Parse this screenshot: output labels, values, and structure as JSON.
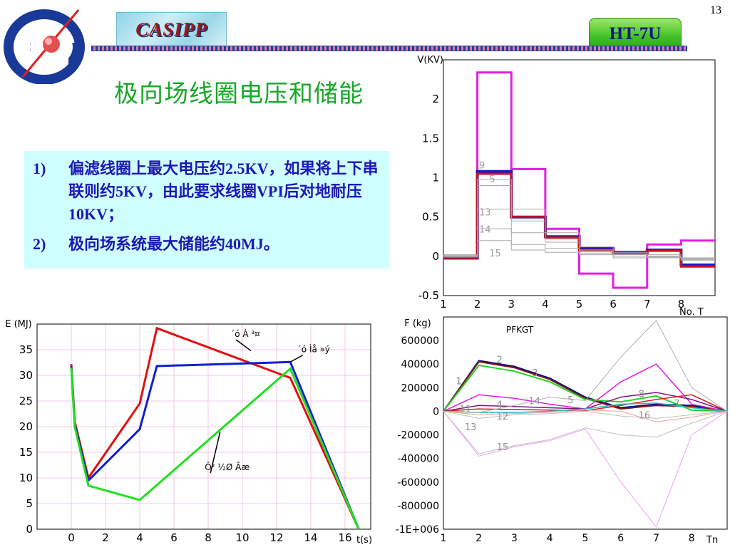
{
  "page_number": "13",
  "logo": {
    "name": "casipp-emblem"
  },
  "header": {
    "casipp_label": "CASIPP",
    "badge_label": "HT-7U"
  },
  "title": "极向场线圈电压和储能",
  "notes": [
    {
      "num": "1)",
      "text": "偏滤线圈上最大电压约2.5KV，如果将上下串联则约5KV，由此要求线圈VPI后对地耐压10KV；"
    },
    {
      "num": "2)",
      "text": "极向场系统最大储能约40MJ。"
    }
  ],
  "chart_data": [
    {
      "type": "line",
      "step": true,
      "ylabel": "V(KV)",
      "xlabel": "No. T",
      "xlim": [
        1,
        9
      ],
      "ylim": [
        -0.5,
        2.5
      ],
      "x_ticks": [
        1,
        2,
        3,
        4,
        5,
        6,
        7,
        8
      ],
      "y_ticks": [
        -0.5,
        0,
        0.5,
        1,
        1.5,
        2
      ],
      "y_tick_labels": [
        "-0.5",
        "0",
        "0.5",
        "1",
        "1.5",
        "2"
      ],
      "grid": false,
      "series": [
        {
          "color": "#e21ee2",
          "width": 3,
          "values": [
            -0.03,
            2.34,
            1.11,
            0.35,
            -0.22,
            -0.4,
            0.15,
            0.2
          ]
        },
        {
          "color": "#1a1ac8",
          "width": 4,
          "values": [
            -0.02,
            1.08,
            0.5,
            0.25,
            0.1,
            0.05,
            0.08,
            -0.11
          ]
        },
        {
          "color": "#c81414",
          "width": 3,
          "values": [
            -0.02,
            1.05,
            0.5,
            0.24,
            0.08,
            0.03,
            0.07,
            -0.13
          ]
        },
        {
          "color": "#a8a8a8",
          "width": 1,
          "values": [
            0.02,
            0.98,
            0.6,
            0.3,
            0.12,
            0.05,
            0.0,
            -0.02
          ]
        },
        {
          "color": "#a8a8a8",
          "width": 1,
          "values": [
            0.01,
            0.9,
            0.45,
            0.22,
            0.08,
            0.02,
            0.0,
            -0.03
          ]
        },
        {
          "color": "#a8a8a8",
          "width": 1,
          "values": [
            0.0,
            0.6,
            0.3,
            0.18,
            0.06,
            0.03,
            0.02,
            -0.05
          ]
        },
        {
          "color": "#a8a8a8",
          "width": 1,
          "values": [
            0.0,
            0.35,
            0.15,
            0.1,
            0.04,
            0.0,
            -0.02,
            -0.04
          ]
        },
        {
          "color": "#a8a8a8",
          "width": 1,
          "values": [
            -0.01,
            0.2,
            0.08,
            0.05,
            0.02,
            -0.02,
            -0.01,
            -0.03
          ]
        }
      ],
      "annotations": [
        {
          "text": "9",
          "x": 2.05,
          "y": 1.12
        },
        {
          "text": "5",
          "x": 2.35,
          "y": 0.94
        },
        {
          "text": "13",
          "x": 2.05,
          "y": 0.52
        },
        {
          "text": "14",
          "x": 2.05,
          "y": 0.3
        },
        {
          "text": "15",
          "x": 2.35,
          "y": 0.0
        }
      ]
    },
    {
      "type": "line",
      "ylabel": "E (MJ)",
      "xlabel": "t(s)",
      "xlim": [
        -2,
        17.5
      ],
      "ylim": [
        0,
        40
      ],
      "x_ticks": [
        0,
        2,
        4,
        6,
        8,
        10,
        12,
        14,
        16
      ],
      "y_ticks": [
        0,
        5,
        10,
        15,
        20,
        25,
        30,
        35
      ],
      "grid": true,
      "series": [
        {
          "color": "#e01010",
          "x": [
            0,
            0.2,
            1,
            4,
            5,
            12.8,
            16.8
          ],
          "y": [
            32.2,
            21,
            10,
            24.5,
            39.2,
            29.5,
            0
          ]
        },
        {
          "color": "#1020d0",
          "x": [
            0,
            0.2,
            1,
            4,
            5,
            12.8,
            16.8
          ],
          "y": [
            31.8,
            20.5,
            9.5,
            19.5,
            31.8,
            32.6,
            0
          ]
        },
        {
          "color": "#20e020",
          "x": [
            0,
            0.2,
            1,
            4,
            12.8,
            16.8
          ],
          "y": [
            31.5,
            20,
            8.5,
            5.7,
            31.3,
            0
          ]
        }
      ],
      "annotations": [
        {
          "text": "´ó À­ ³¤",
          "x": 9.3,
          "y": 37.5,
          "leader_to": [
            10.5,
            34.8
          ]
        },
        {
          "text": "´ó Ìå »ý",
          "x": 13.2,
          "y": 34.5,
          "leader_to": [
            12.8,
            32.6
          ]
        },
        {
          "text": "Ô² ½Ø Ãæ",
          "x": 7.8,
          "y": 11.5,
          "leader_to": [
            8.7,
            19.0
          ]
        }
      ]
    },
    {
      "type": "line",
      "ylabel": "F (kg)",
      "xlabel": "Tn",
      "legend_title": "PFKGT",
      "xlim": [
        1,
        9
      ],
      "ylim": [
        -1000000,
        800000
      ],
      "x_ticks": [
        1,
        2,
        3,
        4,
        5,
        6,
        7,
        8
      ],
      "y_ticks": [
        600000,
        400000,
        200000,
        0,
        -200000,
        -400000,
        -600000,
        -800000,
        -1000000
      ],
      "y_tick_labels": [
        "600000",
        "400000",
        "200000",
        "0",
        "-200000",
        "-400000",
        "-600000",
        "-800000",
        "-1E+006"
      ],
      "grid": false,
      "series": [
        {
          "color": "#0a0a8a",
          "width": 2,
          "values": [
            0,
            430000,
            380000,
            280000,
            120000,
            30000,
            60000,
            50000,
            0
          ]
        },
        {
          "color": "#7a1a1a",
          "width": 2,
          "values": [
            0,
            420000,
            370000,
            270000,
            110000,
            20000,
            50000,
            40000,
            0
          ]
        },
        {
          "color": "#25d025",
          "width": 2,
          "values": [
            0,
            390000,
            340000,
            250000,
            100000,
            80000,
            130000,
            10000,
            0
          ]
        },
        {
          "color": "#e21ee2",
          "width": 1.5,
          "values": [
            0,
            140000,
            110000,
            60000,
            20000,
            250000,
            400000,
            60000,
            0
          ]
        },
        {
          "color": "#7a1a7a",
          "width": 1.5,
          "values": [
            0,
            50000,
            40000,
            30000,
            20000,
            120000,
            160000,
            100000,
            0
          ]
        },
        {
          "color": "#d02020",
          "width": 1.5,
          "values": [
            0,
            20000,
            15000,
            10000,
            5000,
            50000,
            100000,
            140000,
            0
          ]
        },
        {
          "color": "#20c0c0",
          "width": 1.5,
          "values": [
            0,
            -10000,
            -10000,
            0,
            20000,
            60000,
            70000,
            30000,
            0
          ]
        },
        {
          "color": "#b0b0b0",
          "width": 1,
          "values": [
            0,
            -10000,
            50000,
            120000,
            90000,
            460000,
            770000,
            200000,
            0
          ]
        },
        {
          "color": "#c0c0c0",
          "width": 1,
          "values": [
            0,
            -60000,
            -30000,
            -20000,
            0,
            -40000,
            -60000,
            -30000,
            0
          ]
        },
        {
          "color": "#f0a0a0",
          "width": 1,
          "values": [
            0,
            -30000,
            -20000,
            -10000,
            10000,
            0,
            -90000,
            -50000,
            0
          ]
        },
        {
          "color": "#f0a0f0",
          "width": 1,
          "values": [
            0,
            -380000,
            -300000,
            -250000,
            -150000,
            -600000,
            -980000,
            -200000,
            0
          ]
        },
        {
          "color": "#c0c0c0",
          "width": 1,
          "values": [
            0,
            -360000,
            -290000,
            -240000,
            -140000,
            -200000,
            -220000,
            -100000,
            0
          ]
        }
      ],
      "annotations": [
        {
          "text": "1",
          "x": 1.35,
          "y": 230000
        },
        {
          "text": "2",
          "x": 2.5,
          "y": 410000
        },
        {
          "text": "3",
          "x": 3.5,
          "y": 300000
        },
        {
          "text": "4",
          "x": 2.5,
          "y": 30000
        },
        {
          "text": "14",
          "x": 3.4,
          "y": 60000
        },
        {
          "text": "5",
          "x": 4.5,
          "y": 70000
        },
        {
          "text": "8",
          "x": 6.5,
          "y": 120000
        },
        {
          "text": "7",
          "x": 7.5,
          "y": 40000
        },
        {
          "text": "11",
          "x": 1.45,
          "y": -10000
        },
        {
          "text": "12",
          "x": 2.5,
          "y": -70000
        },
        {
          "text": "16",
          "x": 6.5,
          "y": -60000
        },
        {
          "text": "13",
          "x": 1.6,
          "y": -160000
        },
        {
          "text": "15",
          "x": 2.5,
          "y": -330000
        }
      ]
    }
  ]
}
